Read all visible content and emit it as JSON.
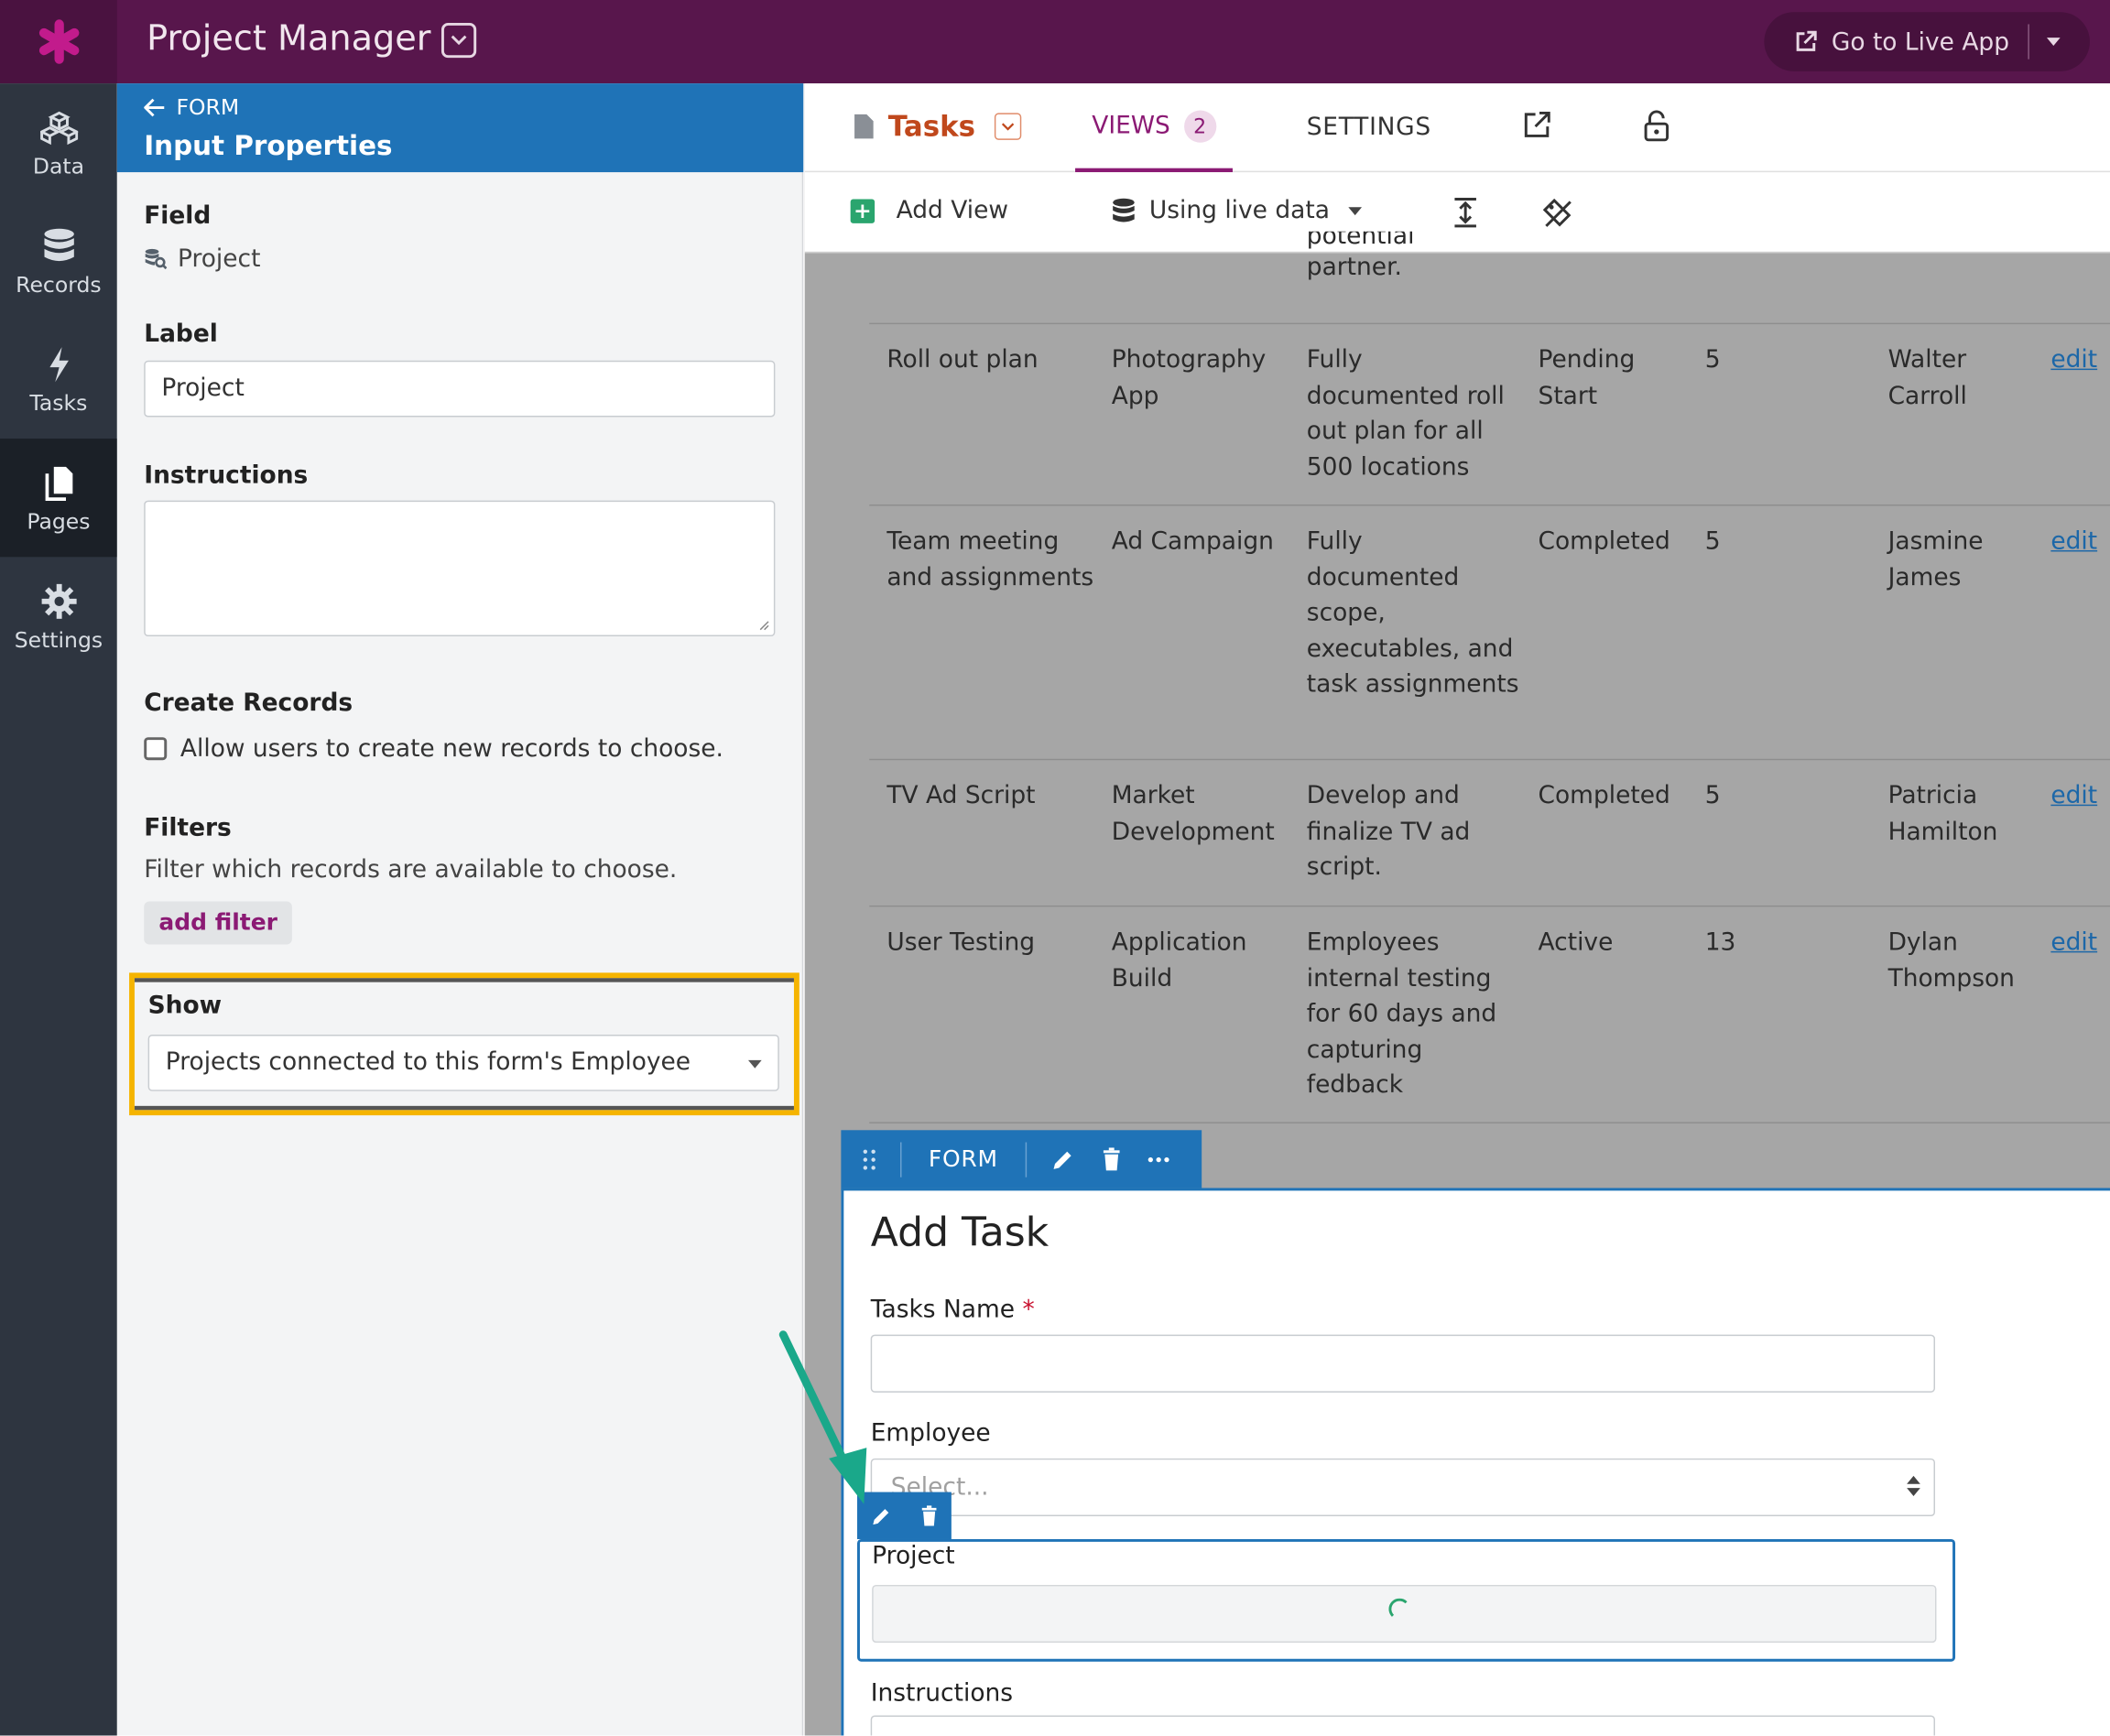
{
  "app": {
    "title": "Project Manager",
    "live_button": "Go to Live App"
  },
  "rail": {
    "items": [
      {
        "label": "Data",
        "icon": "data-icon"
      },
      {
        "label": "Records",
        "icon": "database-icon"
      },
      {
        "label": "Tasks",
        "icon": "bolt-icon"
      },
      {
        "label": "Pages",
        "icon": "pages-icon",
        "active": true
      },
      {
        "label": "Settings",
        "icon": "gear-icon"
      }
    ]
  },
  "panel": {
    "back_label": "FORM",
    "title": "Input Properties",
    "field_label": "Field",
    "field_value": "Project",
    "label_label": "Label",
    "label_value": "Project",
    "instructions_label": "Instructions",
    "create_records_label": "Create Records",
    "create_records_checkbox": "Allow users to create new records to choose.",
    "filters_label": "Filters",
    "filters_help": "Filter which records are available to choose.",
    "add_filter": "add filter",
    "show_label": "Show",
    "show_value": "Projects connected to this form's Employee"
  },
  "tabs": {
    "tasks": "Tasks",
    "views": "VIEWS",
    "views_count": "2",
    "settings": "SETTINGS"
  },
  "toolbar": {
    "add_view": "Add View",
    "live_data": "Using live data"
  },
  "table": {
    "partial_line1": "potential",
    "partial_line2": "partner.",
    "rows": [
      {
        "task": "Roll out plan",
        "project": "Photography App",
        "description": "Fully documented roll out plan for all 500 locations",
        "status": "Pending Start",
        "hours": "5",
        "employee": "Walter Carroll",
        "action": "edit"
      },
      {
        "task": "Team meeting and assignments",
        "project": "Ad Campaign",
        "description": "Fully documented scope, executables, and task assignments",
        "status": "Completed",
        "hours": "5",
        "employee": "Jasmine James",
        "action": "edit"
      },
      {
        "task": "TV Ad Script",
        "project": "Market Development",
        "description": "Develop and finalize TV ad script.",
        "status": "Completed",
        "hours": "5",
        "employee": "Patricia Hamilton",
        "action": "edit"
      },
      {
        "task": "User Testing",
        "project": "Application Build",
        "description": "Employees internal testing for 60 days and capturing fedback",
        "status": "Active",
        "hours": "13",
        "employee": "Dylan Thompson",
        "action": "edit"
      }
    ]
  },
  "form": {
    "tag": "FORM",
    "title": "Add Task",
    "tasks_name_label": "Tasks Name",
    "required_mark": "*",
    "employee_label": "Employee",
    "employee_placeholder": "Select...",
    "project_label": "Project",
    "instructions_label": "Instructions"
  },
  "colors": {
    "brand": "#58164c",
    "accent": "#1f73b7",
    "highlight": "#f5b400",
    "arrow": "#1aa88a"
  }
}
